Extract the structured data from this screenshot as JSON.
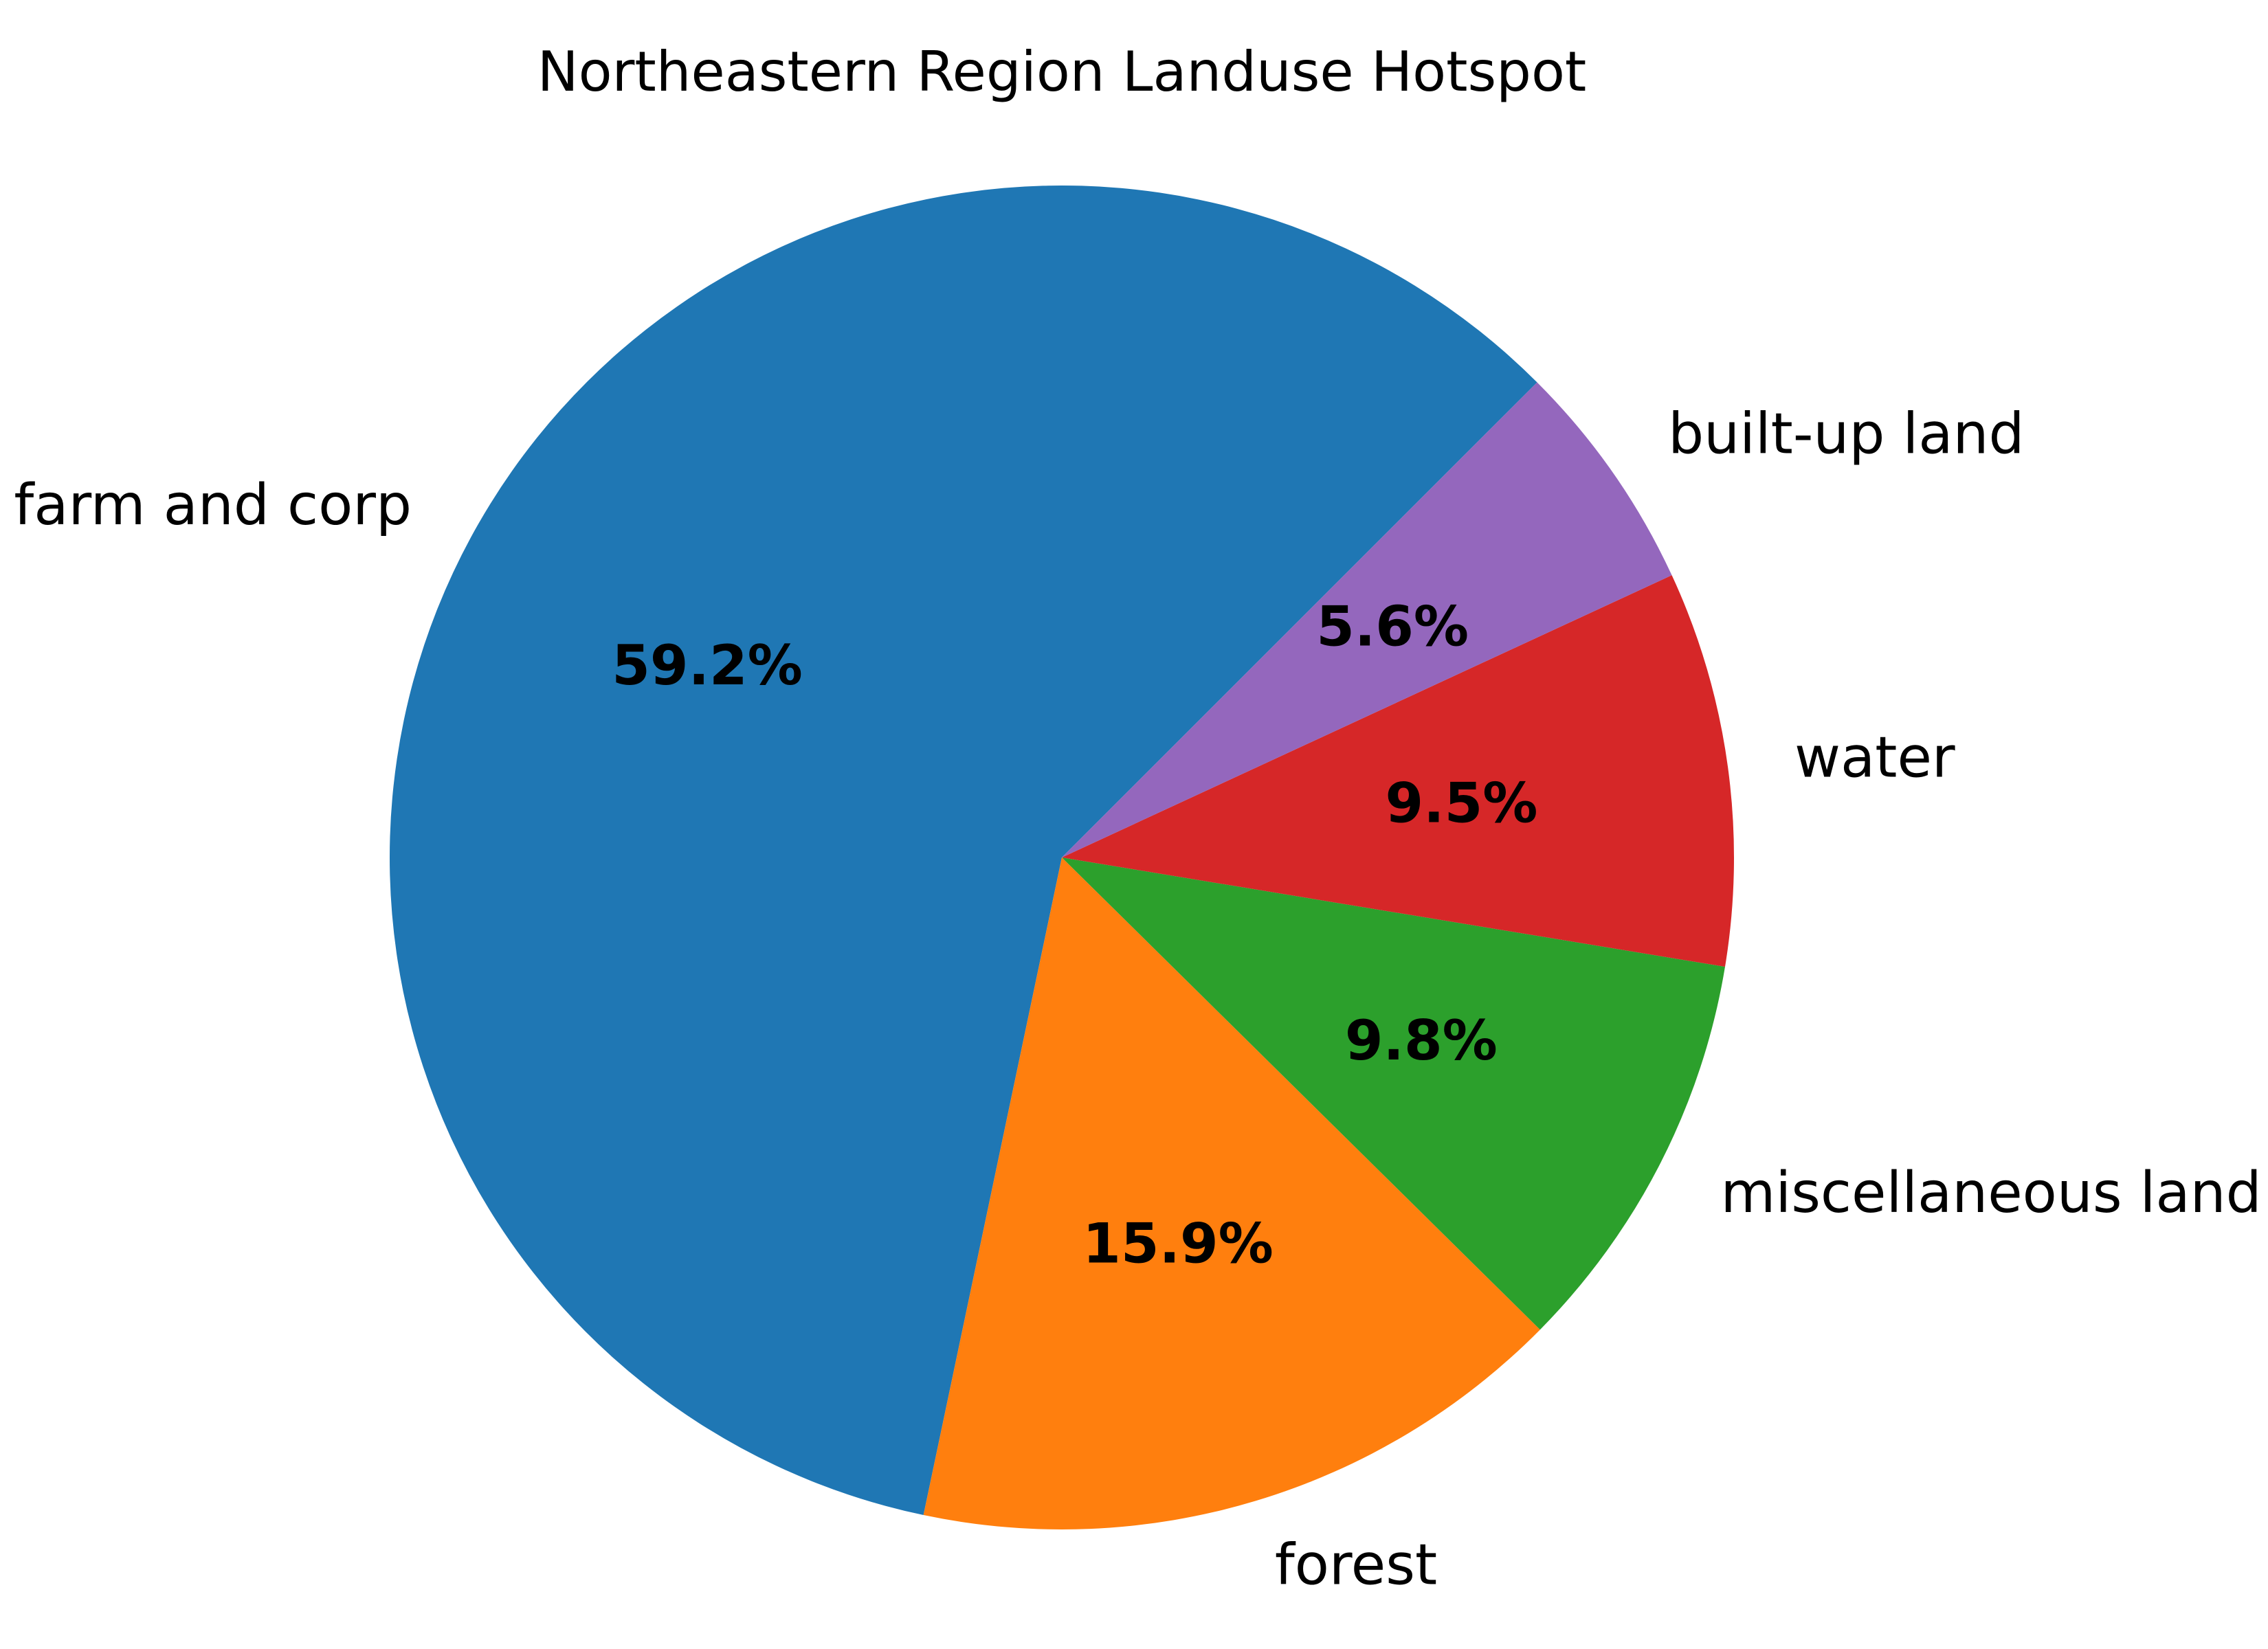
{
  "chart_data": {
    "type": "pie",
    "title": "Northeastern Region Landuse Hotspot",
    "slices": [
      {
        "label": "farm and corp",
        "value": 59.2,
        "pct_label": "59.2%",
        "color": "#1f77b4"
      },
      {
        "label": "forest",
        "value": 15.9,
        "pct_label": "15.9%",
        "color": "#ff7f0e"
      },
      {
        "label": "miscellaneous land",
        "value": 9.8,
        "pct_label": "9.8%",
        "color": "#2ca02c"
      },
      {
        "label": "water",
        "value": 9.5,
        "pct_label": "9.5%",
        "color": "#d62728"
      },
      {
        "label": "built-up land",
        "value": 5.6,
        "pct_label": "5.6%",
        "color": "#9467bd"
      }
    ],
    "start_angle": 45,
    "direction": "counterclockwise"
  }
}
